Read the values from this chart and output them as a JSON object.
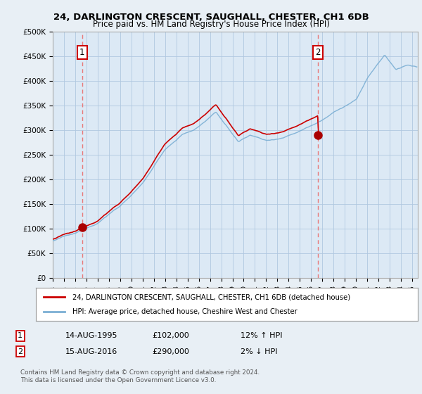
{
  "title": "24, DARLINGTON CRESCENT, SAUGHALL, CHESTER, CH1 6DB",
  "subtitle": "Price paid vs. HM Land Registry's House Price Index (HPI)",
  "ylim": [
    0,
    500000
  ],
  "yticks": [
    0,
    50000,
    100000,
    150000,
    200000,
    250000,
    300000,
    350000,
    400000,
    450000,
    500000
  ],
  "ytick_labels": [
    "£0",
    "£50K",
    "£100K",
    "£150K",
    "£200K",
    "£250K",
    "£300K",
    "£350K",
    "£400K",
    "£450K",
    "£500K"
  ],
  "sale1_date": 1995.62,
  "sale1_price": 102000,
  "sale1_label": "1",
  "sale2_date": 2016.62,
  "sale2_price": 290000,
  "sale2_label": "2",
  "hpi_line_color": "#7bafd4",
  "price_line_color": "#cc0000",
  "sale_dot_color": "#aa0000",
  "dashed_line_color": "#e87878",
  "grid_color": "#b0c8e0",
  "background_color": "#e8eff5",
  "plot_bg_color": "#dce9f5",
  "legend_bg_color": "#ffffff",
  "legend1_text": "24, DARLINGTON CRESCENT, SAUGHALL, CHESTER, CH1 6DB (detached house)",
  "legend2_text": "HPI: Average price, detached house, Cheshire West and Chester",
  "note1_box": "1",
  "note1_date": "14-AUG-1995",
  "note1_price": "£102,000",
  "note1_hpi": "12% ↑ HPI",
  "note2_box": "2",
  "note2_date": "15-AUG-2016",
  "note2_price": "£290,000",
  "note2_hpi": "2% ↓ HPI",
  "footer": "Contains HM Land Registry data © Crown copyright and database right 2024.\nThis data is licensed under the Open Government Licence v3.0.",
  "xmin": 1993,
  "xmax": 2025.5
}
